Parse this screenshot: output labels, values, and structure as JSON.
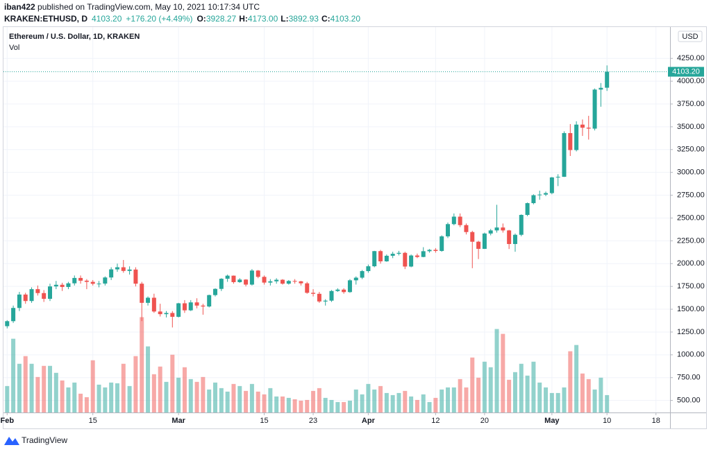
{
  "header": {
    "author": "iban422",
    "published": " published on TradingView.com, May 10, 2021 10:17:34 UTC",
    "symbol": "KRAKEN:ETHUSD, D",
    "price": "4103.20",
    "change": "+176.20 (+4.49%)",
    "ohlc": [
      {
        "key": "O:",
        "value": "3928.27"
      },
      {
        "key": "H:",
        "value": "4173.00"
      },
      {
        "key": "L:",
        "value": "3892.93"
      },
      {
        "key": "C:",
        "value": "4103.20"
      }
    ]
  },
  "footer": "TradingView",
  "chart_data": {
    "type": "candlestick",
    "title": "Ethereum / U.S. Dollar, 1D, KRAKEN",
    "volume_label": "Vol",
    "currency": "USD",
    "up_color": "#26a69a",
    "down_color": "#ef5350",
    "grid": true,
    "last_price": {
      "value": 4103.2,
      "label": "4103.20"
    },
    "xlim": [
      -0.6,
      108.3
    ],
    "xticks": [
      {
        "value": 0,
        "label": "Feb"
      },
      {
        "value": 14,
        "label": "15"
      },
      {
        "value": 28,
        "label": "Mar"
      },
      {
        "value": 42,
        "label": "15"
      },
      {
        "value": 50,
        "label": "23"
      },
      {
        "value": 59,
        "label": "Apr"
      },
      {
        "value": 70,
        "label": "12"
      },
      {
        "value": 78,
        "label": "20"
      },
      {
        "value": 89,
        "label": "May"
      },
      {
        "value": 98,
        "label": "10"
      },
      {
        "value": 106,
        "label": "18"
      }
    ],
    "ylim": [
      368,
      4586
    ],
    "yticks": [
      {
        "value": 500,
        "label": "500.00"
      },
      {
        "value": 750,
        "label": "750.00"
      },
      {
        "value": 1000,
        "label": "1000.00"
      },
      {
        "value": 1250,
        "label": "1250.00"
      },
      {
        "value": 1500,
        "label": "1500.00"
      },
      {
        "value": 1750,
        "label": "1750.00"
      },
      {
        "value": 2000,
        "label": "2000.00"
      },
      {
        "value": 2250,
        "label": "2250.00"
      },
      {
        "value": 2500,
        "label": "2500.00"
      },
      {
        "value": 2750,
        "label": "2750.00"
      },
      {
        "value": 3000,
        "label": "3000.00"
      },
      {
        "value": 3250,
        "label": "3250.00"
      },
      {
        "value": 3500,
        "label": "3500.00"
      },
      {
        "value": 3750,
        "label": "3750.00"
      },
      {
        "value": 4000,
        "label": "4000.00"
      },
      {
        "value": 4250,
        "label": "4250.00"
      }
    ],
    "volume_ylim": [
      0,
      553
    ],
    "open": [
      1314,
      1369,
      1514,
      1661,
      1590,
      1720,
      1677,
      1614,
      1750,
      1768,
      1744,
      1784,
      1843,
      1813,
      1800,
      1779,
      1781,
      1848,
      1937,
      1960,
      1920,
      1935,
      1780,
      1570,
      1626,
      1475,
      1446,
      1459,
      1417,
      1565,
      1488,
      1575,
      1540,
      1530,
      1655,
      1723,
      1834,
      1868,
      1797,
      1825,
      1770,
      1924,
      1855,
      1792,
      1806,
      1823,
      1780,
      1810,
      1806,
      1784,
      1680,
      1669,
      1585,
      1594,
      1700,
      1715,
      1688,
      1817,
      1846,
      1918,
      1971,
      2137,
      2025,
      2086,
      2108,
      2118,
      1968,
      2089,
      2073,
      2136,
      2151,
      2139,
      2299,
      2433,
      2515,
      2422,
      2346,
      2240,
      2162,
      2330,
      2364,
      2396,
      2364,
      2215,
      2316,
      2534,
      2663,
      2750,
      2757,
      2773,
      2945,
      2952,
      3431,
      3245,
      3524,
      3490,
      3480,
      3908,
      3928.27
    ],
    "high": [
      1380,
      1540,
      1690,
      1680,
      1740,
      1760,
      1710,
      1780,
      1810,
      1790,
      1800,
      1870,
      1870,
      1830,
      1820,
      1810,
      1860,
      1960,
      2000,
      2040,
      1970,
      1960,
      1800,
      1640,
      1670,
      1560,
      1480,
      1480,
      1570,
      1600,
      1600,
      1620,
      1560,
      1660,
      1730,
      1840,
      1880,
      1870,
      1840,
      1830,
      1940,
      1930,
      1870,
      1830,
      1840,
      1830,
      1820,
      1830,
      1810,
      1800,
      1720,
      1690,
      1610,
      1710,
      1730,
      1730,
      1830,
      1860,
      1930,
      1990,
      2140,
      2150,
      2100,
      2130,
      2140,
      2130,
      2100,
      2110,
      2180,
      2160,
      2170,
      2310,
      2450,
      2550,
      2550,
      2440,
      2360,
      2250,
      2340,
      2380,
      2645,
      2440,
      2370,
      2330,
      2540,
      2670,
      2760,
      2800,
      2790,
      2950,
      2980,
      3450,
      3530,
      3560,
      3580,
      3620,
      3920,
      3980,
      4173.0
    ],
    "low": [
      1290,
      1350,
      1480,
      1560,
      1570,
      1650,
      1580,
      1590,
      1720,
      1700,
      1720,
      1760,
      1780,
      1720,
      1760,
      1740,
      1760,
      1820,
      1910,
      1900,
      1880,
      1750,
      1370,
      1540,
      1460,
      1420,
      1410,
      1300,
      1410,
      1460,
      1480,
      1510,
      1440,
      1520,
      1640,
      1700,
      1800,
      1780,
      1790,
      1750,
      1760,
      1840,
      1770,
      1760,
      1780,
      1770,
      1770,
      1780,
      1760,
      1670,
      1640,
      1570,
      1540,
      1580,
      1690,
      1670,
      1680,
      1770,
      1830,
      1900,
      1960,
      2000,
      2020,
      2060,
      2090,
      1940,
      1960,
      2060,
      2070,
      2120,
      2120,
      2130,
      2280,
      2420,
      2400,
      2320,
      1950,
      2050,
      2160,
      2310,
      2340,
      2340,
      2160,
      2130,
      2300,
      2520,
      2650,
      2700,
      2740,
      2760,
      2850,
      2950,
      3180,
      3230,
      3400,
      3360,
      3460,
      3720,
      3892.93
    ],
    "close": [
      1369,
      1514,
      1661,
      1590,
      1720,
      1677,
      1614,
      1750,
      1768,
      1744,
      1784,
      1843,
      1813,
      1800,
      1779,
      1781,
      1848,
      1937,
      1960,
      1920,
      1935,
      1780,
      1570,
      1626,
      1475,
      1446,
      1459,
      1417,
      1565,
      1488,
      1575,
      1540,
      1530,
      1655,
      1723,
      1834,
      1868,
      1797,
      1825,
      1770,
      1924,
      1855,
      1792,
      1806,
      1823,
      1780,
      1810,
      1806,
      1784,
      1680,
      1669,
      1585,
      1594,
      1700,
      1715,
      1688,
      1817,
      1846,
      1918,
      1971,
      2137,
      2025,
      2086,
      2108,
      2118,
      1968,
      2089,
      2073,
      2136,
      2151,
      2139,
      2299,
      2433,
      2515,
      2422,
      2346,
      2240,
      2162,
      2330,
      2364,
      2396,
      2364,
      2215,
      2316,
      2534,
      2663,
      2750,
      2757,
      2773,
      2945,
      2952,
      3431,
      3245,
      3524,
      3490,
      3480,
      3908,
      3927,
      4103.2
    ],
    "volume": [
      38,
      106,
      70,
      81,
      70,
      51,
      67,
      67,
      57,
      46,
      36,
      43,
      27,
      22,
      75,
      40,
      36,
      43,
      42,
      70,
      38,
      81,
      137,
      95,
      55,
      66,
      44,
      83,
      50,
      65,
      48,
      44,
      51,
      33,
      43,
      35,
      30,
      41,
      38,
      31,
      41,
      30,
      26,
      35,
      23,
      23,
      21,
      19,
      17,
      18,
      31,
      35,
      21,
      18,
      15,
      15,
      17,
      33,
      26,
      41,
      33,
      38,
      28,
      25,
      28,
      31,
      23,
      18,
      26,
      15,
      21,
      33,
      36,
      36,
      48,
      36,
      79,
      50,
      73,
      65,
      120,
      113,
      47,
      58,
      70,
      53,
      73,
      43,
      36,
      28,
      28,
      36,
      88,
      97,
      56,
      48,
      33,
      50,
      25
    ]
  }
}
